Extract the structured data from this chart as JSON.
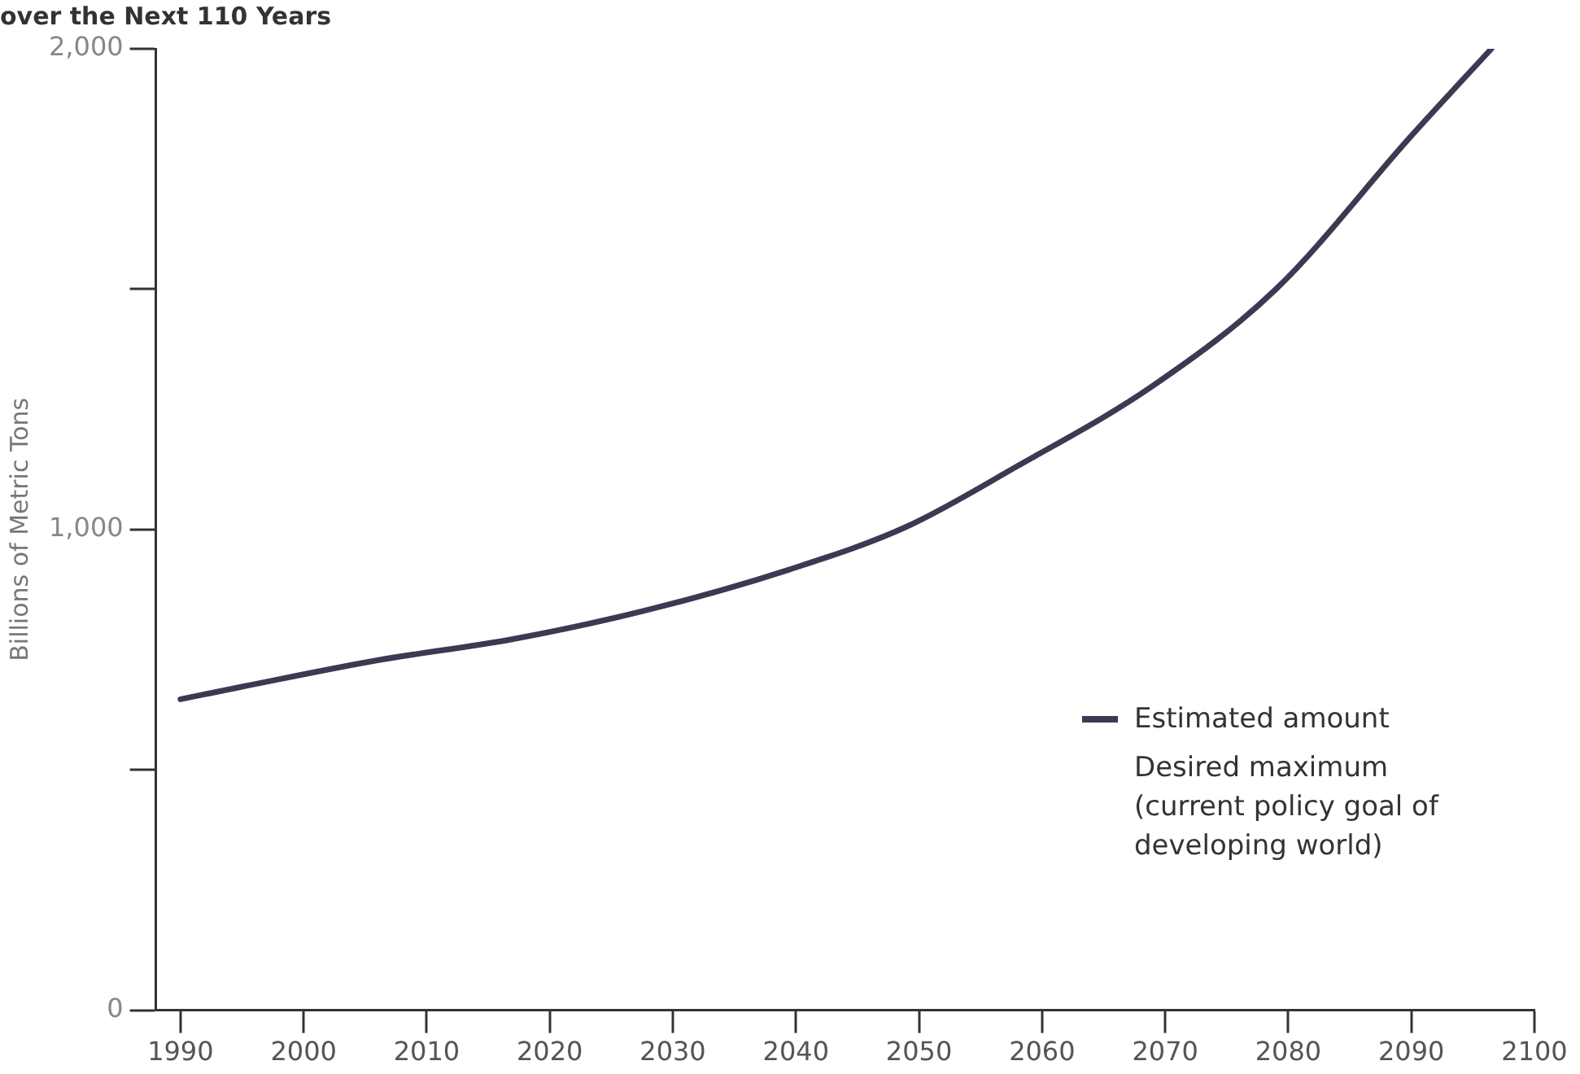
{
  "chart_data": {
    "type": "line",
    "title": "over the Next 110 Years",
    "ylabel": "Billions of Metric Tons",
    "x": [
      1990,
      1995,
      2006,
      2017,
      2028,
      2039.5,
      2049,
      2058,
      2069,
      2079,
      2090,
      2096.5
    ],
    "series": [
      {
        "name": "Estimated amount",
        "color": "#3a3a52",
        "values": [
          647,
          673,
          728,
          772,
          833,
          917,
          1006,
          1132,
          1299,
          1500,
          1819,
          2000
        ]
      }
    ],
    "xlim": [
      1988,
      2100
    ],
    "xticks": [
      1990,
      2000,
      2010,
      2020,
      2030,
      2040,
      2050,
      2060,
      2070,
      2080,
      2090,
      2100
    ],
    "ylim": [
      0,
      2000
    ],
    "yticks": [
      {
        "value": 0,
        "label": "0"
      },
      {
        "value": 500,
        "label": null
      },
      {
        "value": 1000,
        "label": "1,000"
      },
      {
        "value": 1500,
        "label": null
      },
      {
        "value": 2000,
        "label": "2,000"
      }
    ],
    "grid": false,
    "legend": "bottom right",
    "marker": "none",
    "line_style": "solid",
    "annotations": [
      "Desired maximum (current policy goal of developing world)"
    ]
  }
}
